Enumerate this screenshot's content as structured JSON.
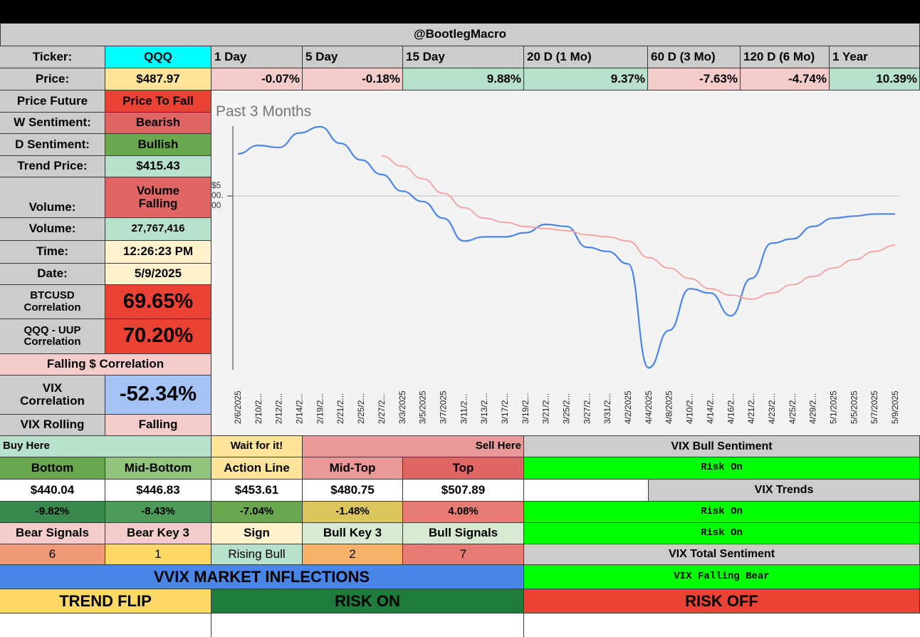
{
  "header": {
    "handle": "@BootlegMacro"
  },
  "ticker": {
    "label": "Ticker:",
    "value": "QQQ"
  },
  "price": {
    "label": "Price:",
    "value": "$487.97"
  },
  "periods": [
    {
      "label": "1 Day",
      "change": "-0.07%"
    },
    {
      "label": "5 Day",
      "change": "-0.18%"
    },
    {
      "label": "15 Day",
      "change": "9.88%"
    },
    {
      "label": "20 D (1 Mo)",
      "change": "9.37%"
    },
    {
      "label": "60 D (3 Mo)",
      "change": "-7.63%"
    },
    {
      "label": "120 D (6 Mo)",
      "change": "-4.74%"
    },
    {
      "label": "1 Year",
      "change": "10.39%"
    }
  ],
  "stats": {
    "price_future": {
      "label": "Price Future",
      "value": "Price To Fall"
    },
    "w_sentiment": {
      "label": "W Sentiment:",
      "value": "Bearish"
    },
    "d_sentiment": {
      "label": "D Sentiment:",
      "value": "Bullish"
    },
    "trend_price": {
      "label": "Trend Price:",
      "value": "$415.43"
    },
    "volume_state": {
      "label": "Volume:",
      "value_line1": "Volume",
      "value_line2": "Falling"
    },
    "volume": {
      "label": "Volume:",
      "value": "27,767,416"
    },
    "time": {
      "label": "Time:",
      "value": "12:26:23 PM"
    },
    "date": {
      "label": "Date:",
      "value": "5/9/2025"
    },
    "btc_corr": {
      "label_line1": "BTCUSD",
      "label_line2": "Correlation",
      "value": "69.65%"
    },
    "uup_corr": {
      "label_line1": "QQQ - UUP",
      "label_line2": "Correlation",
      "value": "70.20%"
    },
    "falling_corr": "Falling $ Correlation",
    "vix_corr": {
      "label_line1": "VIX",
      "label_line2": "Correlation",
      "value": "-52.34%"
    },
    "vix_rolling": {
      "label": "VIX Rolling",
      "value": "Falling"
    }
  },
  "chart_data": {
    "type": "line",
    "title": "Past 3 Months",
    "y_tick_label_fragment": [
      "$5",
      "00.",
      "00"
    ],
    "x": [
      "2/6/2025",
      "2/10/2...",
      "2/12/2...",
      "2/14/2...",
      "2/19/2...",
      "2/21/2...",
      "2/25/2...",
      "2/27/2...",
      "3/3/2025",
      "3/5/2025",
      "3/7/2025",
      "3/11/2...",
      "3/13/2...",
      "3/17/2...",
      "3/19/2...",
      "3/21/2...",
      "3/25/2...",
      "3/27/2...",
      "3/31/2...",
      "4/2/2025",
      "4/4/2025",
      "4/8/2025",
      "4/10/2...",
      "4/14/2...",
      "4/16/2...",
      "4/21/2...",
      "4/23/2...",
      "4/25/2...",
      "4/29/2...",
      "5/1/2025",
      "5/5/2025",
      "5/7/2025",
      "5/9/2025"
    ],
    "series": [
      {
        "color": "#4a86e8",
        "values": [
          525,
          529,
          528,
          535,
          538,
          530,
          522,
          515,
          507,
          502,
          494,
          483,
          485,
          485,
          487,
          491,
          490,
          480,
          478,
          472,
          422,
          440,
          460,
          458,
          447,
          465,
          482,
          484,
          490,
          494,
          495,
          496,
          496
        ]
      },
      {
        "color": "#f4a0a0",
        "values": [
          null,
          null,
          null,
          null,
          null,
          null,
          null,
          524,
          519,
          513,
          506,
          499,
          494,
          492,
          490,
          489,
          488,
          486,
          485,
          483,
          475,
          470,
          465,
          460,
          457,
          455,
          458,
          462,
          466,
          470,
          474,
          478,
          481
        ]
      }
    ],
    "ylim": [
      420,
      540
    ]
  },
  "levels": {
    "buy_here": "Buy Here",
    "wait": "Wait for it!",
    "sell_here": "Sell Here",
    "headers": [
      "Bottom",
      "Mid-Bottom",
      "Action Line",
      "Mid-Top",
      "Top"
    ],
    "prices": [
      "$440.04",
      "$446.83",
      "$453.61",
      "$480.75",
      "$507.89"
    ],
    "pcts": [
      "-9.82%",
      "-8.43%",
      "-7.04%",
      "-1.48%",
      "4.08%"
    ]
  },
  "signals": {
    "headers": [
      "Bear Signals",
      "Bear Key 3",
      "Sign",
      "Bull Key 3",
      "Bull Signals"
    ],
    "values": [
      "6",
      "1",
      "Rising Bull",
      "2",
      "7"
    ]
  },
  "vix": {
    "bull_sentiment_label": "VIX Bull Sentiment",
    "bull_sentiment_value": "Risk On",
    "trends_label": "VIX Trends",
    "trend1": "Risk On",
    "trend2": "Risk On",
    "total_label": "VIX Total Sentiment",
    "total_value": "VIX Falling Bear"
  },
  "vvix": {
    "title": "VVIX MARKET INFLECTIONS",
    "trend_flip": "TREND FLIP",
    "risk_on": "RISK ON",
    "risk_off": "RISK OFF"
  },
  "colors": {
    "cyan": "#00ffff",
    "red": "#ea4335",
    "soft_red": "#e06666",
    "green": "#6aa84f",
    "mint": "#b7e1cd",
    "pink": "#f4cccc",
    "yellow": "#fff2cc",
    "blue": "#a4c2f4",
    "bright_green": "#00ff00",
    "vvix_blue": "#4a86e8",
    "dark_green": "#1e7b3c",
    "gold": "#ffd966"
  }
}
